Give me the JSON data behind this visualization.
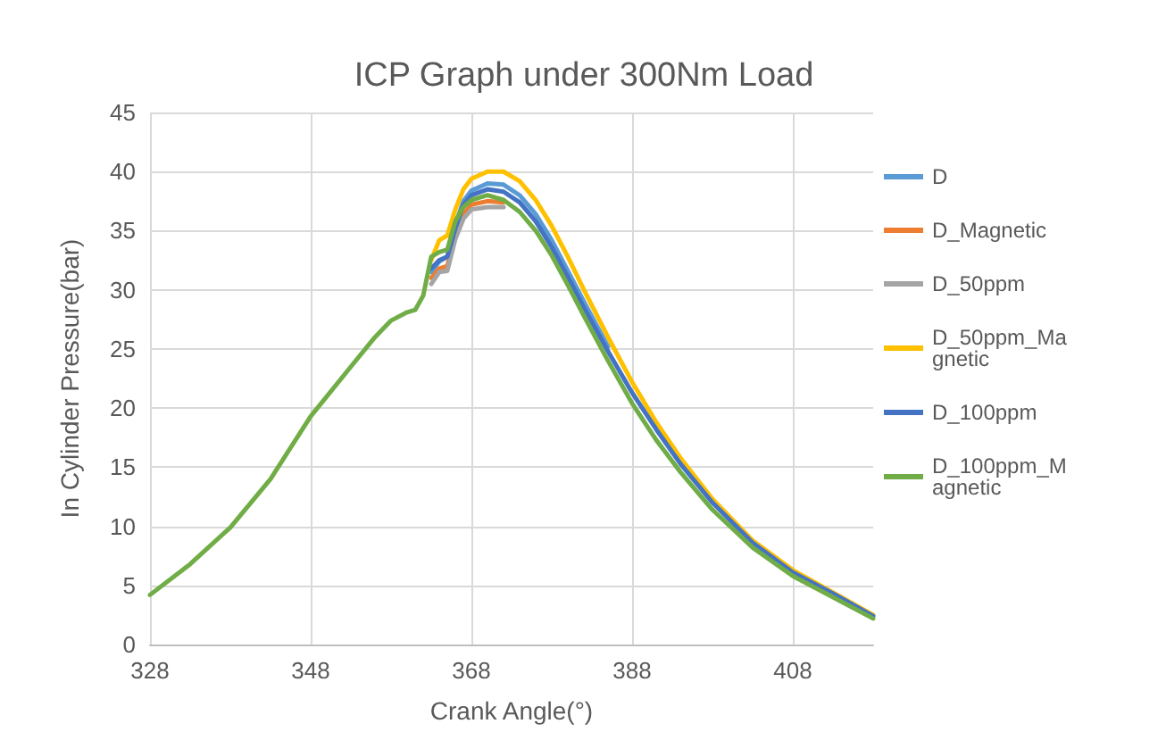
{
  "chart_data": {
    "type": "line",
    "title": "ICP Graph under 300Nm Load",
    "xlabel": "Crank Angle(°)",
    "ylabel": "In Cylinder Pressure(bar)",
    "x": [
      328,
      333,
      338,
      343,
      348,
      353,
      356,
      358,
      360,
      361,
      362,
      363,
      364,
      365,
      366,
      367,
      368,
      370,
      372,
      374,
      376,
      378,
      380,
      382,
      385,
      388,
      391,
      394,
      398,
      403,
      408,
      413,
      418
    ],
    "xlim": [
      328,
      418
    ],
    "xticks": [
      328,
      348,
      368,
      388,
      408
    ],
    "ylim": [
      0,
      45
    ],
    "yticks": [
      0,
      5,
      10,
      15,
      20,
      25,
      30,
      35,
      40,
      45
    ],
    "grid": true,
    "legend": "right",
    "marker": "none",
    "line_style": "solid",
    "series": [
      {
        "name": "D",
        "color": "#5b9bd5",
        "values": [
          null,
          null,
          null,
          null,
          null,
          null,
          null,
          null,
          null,
          null,
          null,
          31.5,
          32.4,
          32.8,
          35.5,
          37.5,
          38.4,
          39.0,
          38.9,
          38.0,
          36.4,
          34.2,
          31.6,
          29.0,
          25.2,
          null,
          null,
          null,
          null,
          null,
          null,
          null,
          null
        ]
      },
      {
        "name": "D_Magnetic",
        "color": "#ed7d31",
        "values": [
          null,
          null,
          null,
          null,
          null,
          null,
          null,
          null,
          null,
          null,
          null,
          31.0,
          31.8,
          32.0,
          34.8,
          36.4,
          37.2,
          37.5,
          37.4,
          null,
          null,
          null,
          null,
          null,
          null,
          null,
          null,
          null,
          null,
          null,
          null,
          null,
          null
        ]
      },
      {
        "name": "D_50ppm",
        "color": "#a5a5a5",
        "values": [
          null,
          null,
          null,
          null,
          null,
          null,
          null,
          null,
          null,
          null,
          null,
          30.5,
          31.5,
          31.6,
          34.3,
          36.0,
          36.8,
          37.0,
          37.0,
          null,
          null,
          null,
          null,
          null,
          null,
          null,
          null,
          null,
          null,
          null,
          null,
          null,
          null
        ]
      },
      {
        "name": "D_50ppm_Magnetic",
        "color": "#ffc000",
        "values": [
          null,
          null,
          null,
          null,
          null,
          null,
          null,
          null,
          null,
          null,
          null,
          32.5,
          34.2,
          34.6,
          36.8,
          38.5,
          39.4,
          40.0,
          40.0,
          39.2,
          37.6,
          35.4,
          32.8,
          30.0,
          26.0,
          22.2,
          18.8,
          15.8,
          12.3,
          8.8,
          6.3,
          4.4,
          2.5
        ]
      },
      {
        "name": "D_100ppm",
        "color": "#4472c4",
        "values": [
          null,
          null,
          null,
          null,
          null,
          null,
          null,
          null,
          null,
          null,
          null,
          31.8,
          32.5,
          32.8,
          35.2,
          37.2,
          38.0,
          38.5,
          38.3,
          37.4,
          35.8,
          33.6,
          31.1,
          28.5,
          24.8,
          21.3,
          18.2,
          15.3,
          12.0,
          8.6,
          6.1,
          4.3,
          2.4
        ]
      },
      {
        "name": "D_100ppm_Magnetic",
        "color": "#70ad47",
        "values": [
          4.2,
          6.8,
          9.9,
          14.0,
          19.3,
          23.5,
          26.0,
          27.4,
          28.1,
          28.3,
          29.5,
          32.8,
          33.2,
          33.4,
          35.8,
          37.0,
          37.6,
          38.0,
          37.6,
          36.6,
          35.0,
          32.9,
          30.4,
          27.8,
          24.0,
          20.4,
          17.3,
          14.6,
          11.4,
          8.2,
          5.8,
          4.0,
          2.2
        ]
      }
    ]
  }
}
